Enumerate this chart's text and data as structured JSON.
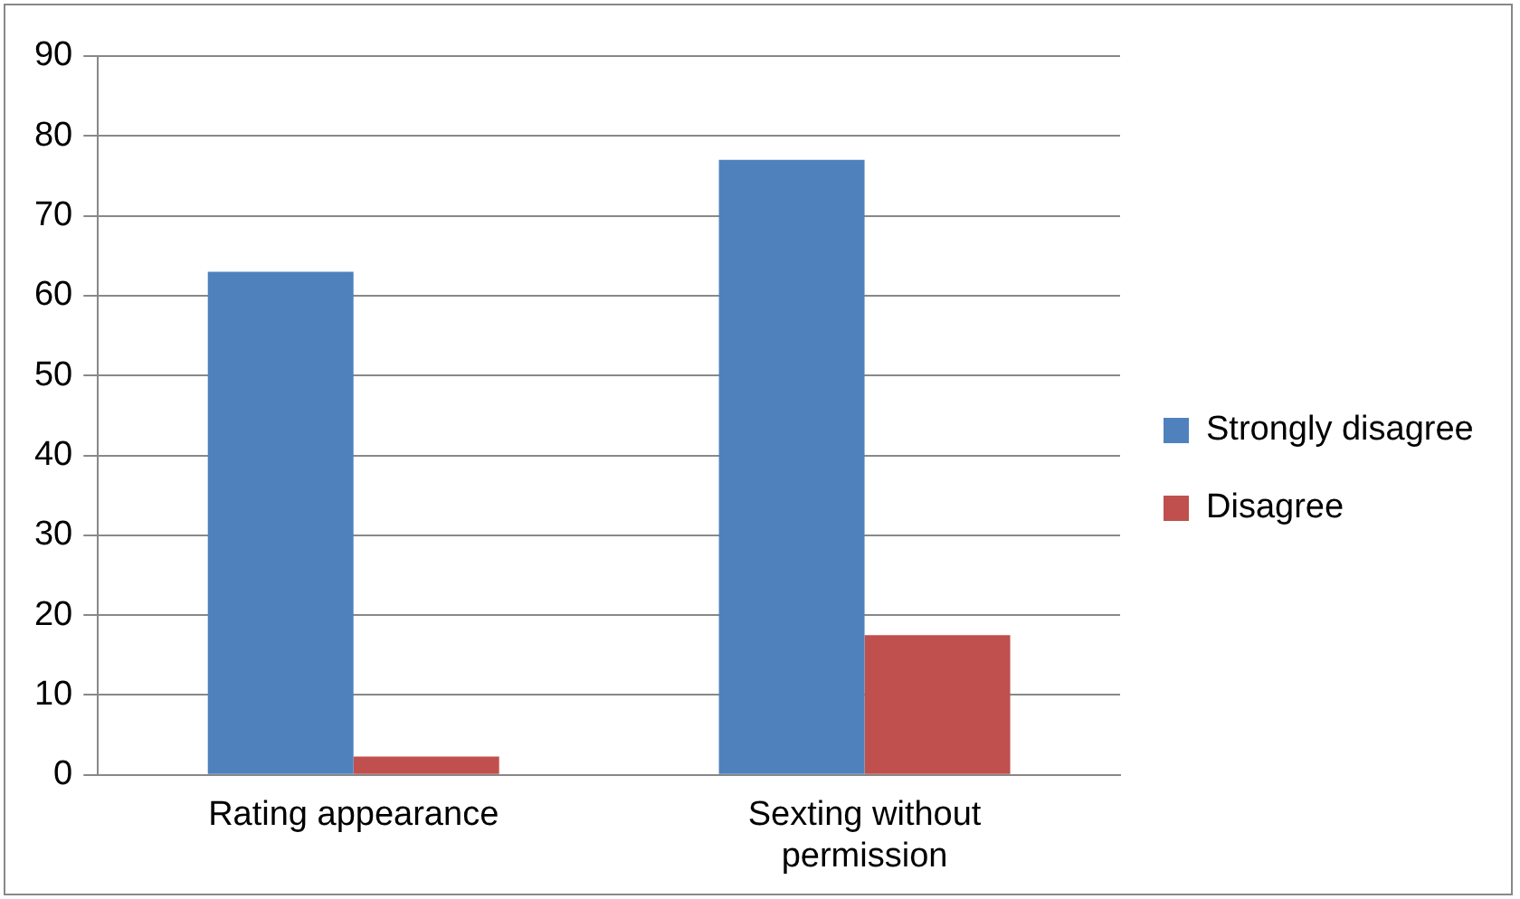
{
  "chart_data": {
    "type": "bar",
    "categories": [
      "Rating appearance",
      "Sexting without permission"
    ],
    "series": [
      {
        "name": "Strongly disagree",
        "color": "#4f81bd",
        "values": [
          63,
          77
        ]
      },
      {
        "name": "Disagree",
        "color": "#c0504d",
        "values": [
          2.3,
          17.5
        ]
      }
    ],
    "ylim": [
      0,
      90
    ],
    "yticks": [
      0,
      10,
      20,
      30,
      40,
      50,
      60,
      70,
      80,
      90
    ],
    "grid": "y",
    "legend": "right"
  }
}
